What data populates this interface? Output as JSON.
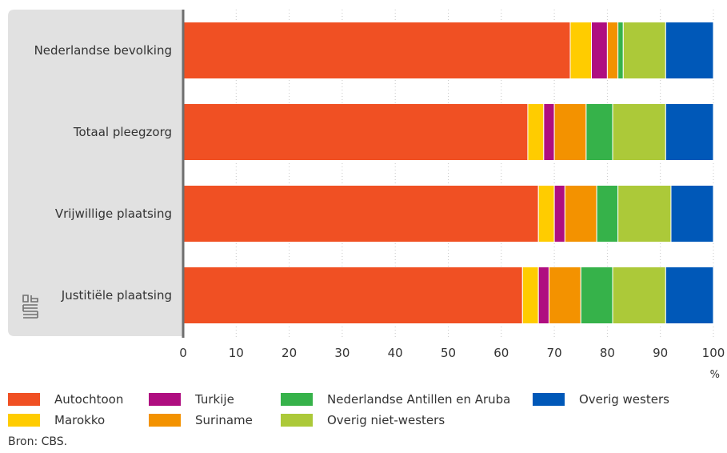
{
  "chart_data": {
    "type": "bar",
    "orientation": "horizontal",
    "stacked": true,
    "categories": [
      "Nederlandse bevolking",
      "Totaal pleegzorg",
      "Vrijwillige plaatsing",
      "Justitiële plaatsing"
    ],
    "series": [
      {
        "name": "Autochtoon",
        "color": "#f05023",
        "values": [
          73,
          65,
          67,
          64
        ]
      },
      {
        "name": "Marokko",
        "color": "#ffcc00",
        "values": [
          4,
          3,
          3,
          3
        ]
      },
      {
        "name": "Turkije",
        "color": "#af0e80",
        "values": [
          3,
          2,
          2,
          2
        ]
      },
      {
        "name": "Suriname",
        "color": "#f39200",
        "values": [
          2,
          6,
          6,
          6
        ]
      },
      {
        "name": "Nederlandse Antillen en Aruba",
        "color": "#36b24a",
        "values": [
          1,
          5,
          4,
          6
        ]
      },
      {
        "name": "Overig niet-westers",
        "color": "#acc939",
        "values": [
          8,
          10,
          10,
          10
        ]
      },
      {
        "name": "Overig westers",
        "color": "#0058b8",
        "values": [
          9,
          9,
          8,
          9
        ]
      }
    ],
    "xlim": [
      0,
      100
    ],
    "xticks": [
      "0",
      "10",
      "20",
      "30",
      "40",
      "50",
      "60",
      "70",
      "80",
      "90",
      "100"
    ],
    "xunit": "%",
    "grid": true,
    "legend_position": "bottom"
  },
  "source": "Bron: CBS."
}
